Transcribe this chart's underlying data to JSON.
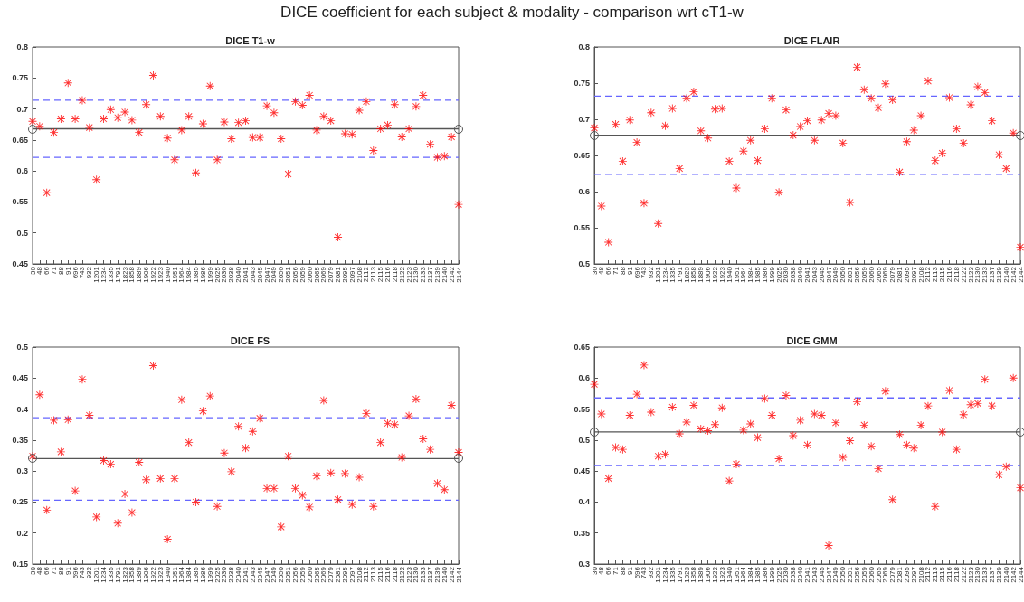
{
  "chart_data": [
    {
      "type": "scatter",
      "title": "DICE T1-w",
      "annotations": [
        "DICE coefficient for each subject & modality - comparison wrt cT1-w"
      ],
      "categories": [
        "30",
        "48",
        "66",
        "71",
        "88",
        "91",
        "696",
        "743",
        "932",
        "1201",
        "1234",
        "1335",
        "1791",
        "1823",
        "1858",
        "1889",
        "1906",
        "1922",
        "1923",
        "1940",
        "1951",
        "1964",
        "1984",
        "1985",
        "1986",
        "1999",
        "2025",
        "2030",
        "2038",
        "2040",
        "2041",
        "2043",
        "2045",
        "2047",
        "2049",
        "2050",
        "2051",
        "2056",
        "2059",
        "2060",
        "2065",
        "2069",
        "2079",
        "2081",
        "2095",
        "2097",
        "2108",
        "2112",
        "2113",
        "2115",
        "2116",
        "2118",
        "2122",
        "2123",
        "2130",
        "2133",
        "2137",
        "2139",
        "2140",
        "2142",
        "2144"
      ],
      "values": [
        0.68,
        0.672,
        0.565,
        0.662,
        0.684,
        0.742,
        0.684,
        0.714,
        0.67,
        0.586,
        0.684,
        0.699,
        0.686,
        0.695,
        0.682,
        0.662,
        0.707,
        0.754,
        0.688,
        0.653,
        0.618,
        0.666,
        0.688,
        0.597,
        0.676,
        0.737,
        0.618,
        0.679,
        0.652,
        0.678,
        0.681,
        0.654,
        0.654,
        0.705,
        0.694,
        0.652,
        0.595,
        0.712,
        0.706,
        0.722,
        0.666,
        0.688,
        0.681,
        0.493,
        0.66,
        0.659,
        0.698,
        0.712,
        0.633,
        0.668,
        0.674,
        0.707,
        0.655,
        0.668,
        0.704,
        0.722,
        0.643,
        0.622,
        0.624,
        0.655,
        0.546
      ],
      "color": "#ff0000",
      "marker": "star",
      "ylim": [
        0.45,
        0.8
      ],
      "yticks": [
        0.45,
        0.5,
        0.55,
        0.6,
        0.65,
        0.7,
        0.75,
        0.8
      ],
      "ref_lines": [
        {
          "axis": "y",
          "value": 0.668,
          "color": "#555555",
          "line_style": "solid"
        },
        {
          "axis": "y",
          "value": 0.714,
          "color": "#6666ff",
          "line_style": "dashed"
        },
        {
          "axis": "y",
          "value": 0.622,
          "color": "#6666ff",
          "line_style": "dashed"
        }
      ]
    },
    {
      "type": "scatter",
      "title": "DICE FLAIR",
      "categories": [
        "30",
        "48",
        "66",
        "71",
        "88",
        "91",
        "696",
        "743",
        "932",
        "1201",
        "1234",
        "1335",
        "1791",
        "1823",
        "1858",
        "1889",
        "1906",
        "1922",
        "1923",
        "1940",
        "1951",
        "1964",
        "1984",
        "1985",
        "1986",
        "1999",
        "2025",
        "2030",
        "2038",
        "2040",
        "2041",
        "2043",
        "2045",
        "2047",
        "2049",
        "2050",
        "2051",
        "2056",
        "2059",
        "2060",
        "2065",
        "2069",
        "2079",
        "2081",
        "2095",
        "2097",
        "2108",
        "2112",
        "2113",
        "2115",
        "2116",
        "2118",
        "2122",
        "2123",
        "2130",
        "2133",
        "2137",
        "2139",
        "2140",
        "2142",
        "2144"
      ],
      "values": [
        0.688,
        0.58,
        0.53,
        0.693,
        0.642,
        0.699,
        0.668,
        0.584,
        0.709,
        0.556,
        0.691,
        0.715,
        0.632,
        0.729,
        0.738,
        0.684,
        0.674,
        0.714,
        0.715,
        0.642,
        0.605,
        0.656,
        0.671,
        0.643,
        0.687,
        0.729,
        0.599,
        0.713,
        0.678,
        0.69,
        0.698,
        0.671,
        0.699,
        0.708,
        0.705,
        0.667,
        0.585,
        0.772,
        0.741,
        0.729,
        0.716,
        0.749,
        0.727,
        0.627,
        0.669,
        0.685,
        0.705,
        0.753,
        0.643,
        0.653,
        0.73,
        0.687,
        0.667,
        0.72,
        0.745,
        0.737,
        0.698,
        0.651,
        0.632,
        0.681,
        0.523
      ],
      "color": "#ff0000",
      "marker": "star",
      "ylim": [
        0.5,
        0.8
      ],
      "yticks": [
        0.5,
        0.55,
        0.6,
        0.65,
        0.7,
        0.75,
        0.8
      ],
      "ref_lines": [
        {
          "axis": "y",
          "value": 0.678,
          "color": "#555555",
          "line_style": "solid"
        },
        {
          "axis": "y",
          "value": 0.732,
          "color": "#6666ff",
          "line_style": "dashed"
        },
        {
          "axis": "y",
          "value": 0.624,
          "color": "#6666ff",
          "line_style": "dashed"
        }
      ]
    },
    {
      "type": "scatter",
      "title": "DICE FS",
      "categories": [
        "30",
        "48",
        "66",
        "71",
        "88",
        "91",
        "696",
        "743",
        "932",
        "1201",
        "1234",
        "1335",
        "1791",
        "1823",
        "1858",
        "1889",
        "1906",
        "1922",
        "1923",
        "1940",
        "1951",
        "1964",
        "1984",
        "1985",
        "1986",
        "1999",
        "2025",
        "2030",
        "2038",
        "2040",
        "2041",
        "2043",
        "2045",
        "2047",
        "2049",
        "2050",
        "2051",
        "2056",
        "2059",
        "2060",
        "2065",
        "2069",
        "2079",
        "2081",
        "2095",
        "2097",
        "2108",
        "2112",
        "2113",
        "2115",
        "2116",
        "2118",
        "2122",
        "2123",
        "2130",
        "2133",
        "2137",
        "2139",
        "2140",
        "2142",
        "2144"
      ],
      "values": [
        0.324,
        0.423,
        0.237,
        0.382,
        0.331,
        0.383,
        0.268,
        0.448,
        0.39,
        0.226,
        0.317,
        0.311,
        0.216,
        0.263,
        0.233,
        0.314,
        0.286,
        0.47,
        0.288,
        0.19,
        0.288,
        0.415,
        0.346,
        0.25,
        0.397,
        0.421,
        0.243,
        0.329,
        0.299,
        0.372,
        0.337,
        0.364,
        0.385,
        0.272,
        0.272,
        0.21,
        0.324,
        0.272,
        0.261,
        0.242,
        0.292,
        0.414,
        0.297,
        0.254,
        0.296,
        0.246,
        0.29,
        0.393,
        0.243,
        0.346,
        0.377,
        0.375,
        0.322,
        0.389,
        0.416,
        0.352,
        0.335,
        0.28,
        0.27,
        0.406,
        0.33
      ],
      "color": "#ff0000",
      "marker": "star",
      "ylim": [
        0.15,
        0.5
      ],
      "yticks": [
        0.15,
        0.2,
        0.25,
        0.3,
        0.35,
        0.4,
        0.45,
        0.5
      ],
      "ref_lines": [
        {
          "axis": "y",
          "value": 0.32,
          "color": "#555555",
          "line_style": "solid"
        },
        {
          "axis": "y",
          "value": 0.386,
          "color": "#6666ff",
          "line_style": "dashed"
        },
        {
          "axis": "y",
          "value": 0.253,
          "color": "#6666ff",
          "line_style": "dashed"
        }
      ]
    },
    {
      "type": "scatter",
      "title": "DICE GMM",
      "categories": [
        "30",
        "48",
        "66",
        "71",
        "88",
        "91",
        "696",
        "743",
        "932",
        "1201",
        "1234",
        "1335",
        "1791",
        "1823",
        "1858",
        "1889",
        "1906",
        "1922",
        "1923",
        "1940",
        "1951",
        "1964",
        "1984",
        "1985",
        "1986",
        "1999",
        "2025",
        "2030",
        "2038",
        "2040",
        "2041",
        "2043",
        "2045",
        "2047",
        "2049",
        "2050",
        "2051",
        "2056",
        "2059",
        "2060",
        "2065",
        "2069",
        "2079",
        "2081",
        "2095",
        "2097",
        "2108",
        "2112",
        "2113",
        "2115",
        "2116",
        "2118",
        "2122",
        "2123",
        "2130",
        "2133",
        "2137",
        "2139",
        "2140",
        "2142",
        "2144"
      ],
      "values": [
        0.59,
        0.542,
        0.438,
        0.488,
        0.485,
        0.54,
        0.574,
        0.621,
        0.545,
        0.474,
        0.477,
        0.553,
        0.51,
        0.529,
        0.556,
        0.518,
        0.515,
        0.525,
        0.552,
        0.434,
        0.461,
        0.516,
        0.526,
        0.504,
        0.567,
        0.54,
        0.47,
        0.572,
        0.507,
        0.532,
        0.492,
        0.542,
        0.54,
        0.33,
        0.528,
        0.472,
        0.499,
        0.562,
        0.524,
        0.49,
        0.454,
        0.579,
        0.404,
        0.509,
        0.492,
        0.487,
        0.524,
        0.555,
        0.393,
        0.513,
        0.58,
        0.485,
        0.541,
        0.557,
        0.559,
        0.598,
        0.555,
        0.444,
        0.457,
        0.6,
        0.423
      ],
      "color": "#ff0000",
      "marker": "star",
      "ylim": [
        0.3,
        0.65
      ],
      "yticks": [
        0.3,
        0.35,
        0.4,
        0.45,
        0.5,
        0.55,
        0.6,
        0.65
      ],
      "ref_lines": [
        {
          "axis": "y",
          "value": 0.513,
          "color": "#555555",
          "line_style": "solid"
        },
        {
          "axis": "y",
          "value": 0.568,
          "color": "#6666ff",
          "line_style": "dashed"
        },
        {
          "axis": "y",
          "value": 0.459,
          "color": "#6666ff",
          "line_style": "dashed"
        }
      ]
    }
  ]
}
